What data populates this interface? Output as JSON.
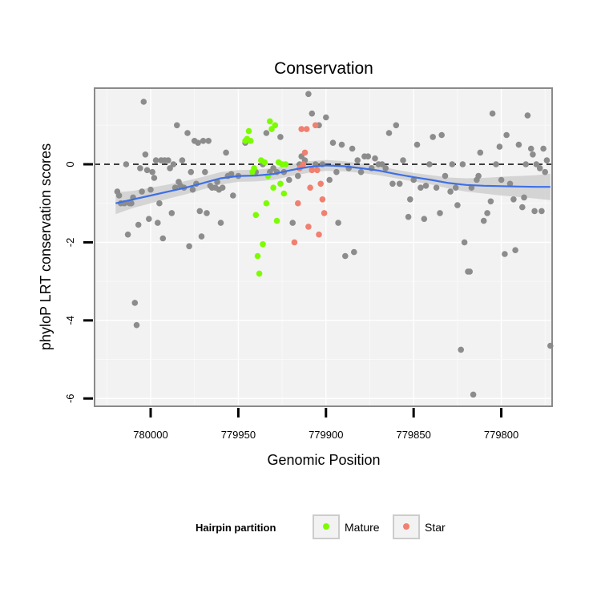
{
  "chart_data": {
    "type": "scatter",
    "title": "Conservation",
    "xlabel": "Genomic Position",
    "ylabel": "phyloP LRT conservation scores",
    "x_reversed": true,
    "xlim": [
      780032,
      779771
    ],
    "ylim": [
      -6.2,
      1.95
    ],
    "x_ticks": [
      780000,
      779950,
      779900,
      779850,
      779800
    ],
    "y_ticks": [
      0,
      -2,
      -4,
      -6
    ],
    "reference_line": {
      "y": 0,
      "style": "dashed"
    },
    "legend": {
      "title": "Hairpin partition",
      "position": "bottom",
      "entries": [
        {
          "label": "Mature",
          "color": "#7cfc00"
        },
        {
          "label": "Star",
          "color": "#f08070"
        }
      ]
    },
    "colors": {
      "background": "#f2f2f2",
      "other": "#8c8c8c",
      "mature": "#7cfc00",
      "star": "#f08070",
      "smooth": "#3d6fe6",
      "ribbon": "#c9c9c9"
    },
    "smooth_line": {
      "x": [
        780020,
        780010,
        780000,
        779990,
        779980,
        779970,
        779960,
        779950,
        779940,
        779930,
        779920,
        779910,
        779900,
        779890,
        779880,
        779870,
        779860,
        779850,
        779840,
        779830,
        779820,
        779810,
        779800,
        779790,
        779780,
        779772
      ],
      "y": [
        -1.0,
        -0.9,
        -0.8,
        -0.7,
        -0.6,
        -0.48,
        -0.36,
        -0.3,
        -0.29,
        -0.25,
        -0.15,
        -0.07,
        -0.03,
        -0.05,
        -0.1,
        -0.16,
        -0.25,
        -0.33,
        -0.4,
        -0.48,
        -0.53,
        -0.55,
        -0.56,
        -0.57,
        -0.58,
        -0.58
      ],
      "lower": [
        -1.28,
        -1.12,
        -1.0,
        -0.88,
        -0.77,
        -0.64,
        -0.52,
        -0.45,
        -0.44,
        -0.4,
        -0.3,
        -0.22,
        -0.17,
        -0.18,
        -0.22,
        -0.28,
        -0.36,
        -0.44,
        -0.52,
        -0.62,
        -0.7,
        -0.75,
        -0.8,
        -0.84,
        -0.88,
        -0.92
      ],
      "upper": [
        -0.72,
        -0.68,
        -0.6,
        -0.52,
        -0.43,
        -0.32,
        -0.2,
        -0.15,
        -0.14,
        -0.1,
        0.0,
        0.08,
        0.11,
        0.08,
        0.02,
        -0.04,
        -0.14,
        -0.22,
        -0.28,
        -0.34,
        -0.36,
        -0.35,
        -0.32,
        -0.3,
        -0.28,
        -0.24
      ]
    },
    "series": [
      {
        "name": "Other",
        "points": [
          [
            780019,
            -0.7
          ],
          [
            780018,
            -0.8
          ],
          [
            780017,
            -1.0
          ],
          [
            780015,
            -1.0
          ],
          [
            780014,
            0.0
          ],
          [
            780013,
            -1.8
          ],
          [
            780012,
            -1.0
          ],
          [
            780011,
            -1.0
          ],
          [
            780010,
            -0.85
          ],
          [
            780009,
            -3.55
          ],
          [
            780008,
            -4.12
          ],
          [
            780007,
            -1.55
          ],
          [
            780006,
            -0.1
          ],
          [
            780005,
            -0.7
          ],
          [
            780004,
            1.6
          ],
          [
            780003,
            0.25
          ],
          [
            780002,
            -0.15
          ],
          [
            780001,
            -1.4
          ],
          [
            780000,
            -0.65
          ],
          [
            779999,
            -0.2
          ],
          [
            779998,
            -0.35
          ],
          [
            779997,
            0.1
          ],
          [
            779996,
            -1.5
          ],
          [
            779995,
            -1.0
          ],
          [
            779994,
            0.1
          ],
          [
            779993,
            -1.9
          ],
          [
            779992,
            0.1
          ],
          [
            779990,
            0.1
          ],
          [
            779989,
            -0.1
          ],
          [
            779988,
            -1.25
          ],
          [
            779987,
            0.0
          ],
          [
            779986,
            -0.6
          ],
          [
            779985,
            1.0
          ],
          [
            779984,
            -0.45
          ],
          [
            779983,
            -0.55
          ],
          [
            779982,
            0.1
          ],
          [
            779981,
            -0.6
          ],
          [
            779979,
            0.8
          ],
          [
            779978,
            -2.1
          ],
          [
            779977,
            -0.2
          ],
          [
            779976,
            -0.65
          ],
          [
            779975,
            0.6
          ],
          [
            779974,
            -0.5
          ],
          [
            779973,
            0.55
          ],
          [
            779972,
            -1.2
          ],
          [
            779971,
            -1.85
          ],
          [
            779970,
            0.6
          ],
          [
            779969,
            -0.2
          ],
          [
            779968,
            -1.25
          ],
          [
            779967,
            0.6
          ],
          [
            779966,
            -0.55
          ],
          [
            779965,
            -0.6
          ],
          [
            779963,
            -0.6
          ],
          [
            779962,
            -0.45
          ],
          [
            779961,
            -0.65
          ],
          [
            779960,
            -1.5
          ],
          [
            779959,
            -0.6
          ],
          [
            779957,
            0.3
          ],
          [
            779956,
            -0.3
          ],
          [
            779954,
            -0.25
          ],
          [
            779953,
            -0.8
          ],
          [
            779950,
            -0.3
          ],
          [
            779946,
            0.55
          ],
          [
            779940,
            -0.2
          ],
          [
            779936,
            0.0
          ],
          [
            779934,
            0.8
          ],
          [
            779932,
            -0.2
          ],
          [
            779930,
            -0.1
          ],
          [
            779928,
            -0.2
          ],
          [
            779926,
            0.7
          ],
          [
            779924,
            -0.2
          ],
          [
            779921,
            -0.4
          ],
          [
            779919,
            -1.5
          ],
          [
            779916,
            -0.3
          ],
          [
            779915,
            0.0
          ],
          [
            779914,
            0.2
          ],
          [
            779912,
            0.1
          ],
          [
            779910,
            1.8
          ],
          [
            779908,
            1.3
          ],
          [
            779906,
            0.0
          ],
          [
            779904,
            1.0
          ],
          [
            779902,
            0.0
          ],
          [
            779900,
            1.2
          ],
          [
            779898,
            -0.4
          ],
          [
            779896,
            0.55
          ],
          [
            779894,
            -0.2
          ],
          [
            779893,
            -1.5
          ],
          [
            779891,
            0.5
          ],
          [
            779889,
            -2.35
          ],
          [
            779887,
            -0.1
          ],
          [
            779885,
            0.4
          ],
          [
            779884,
            -2.25
          ],
          [
            779882,
            0.1
          ],
          [
            779880,
            -0.2
          ],
          [
            779878,
            0.2
          ],
          [
            779876,
            0.2
          ],
          [
            779874,
            -0.1
          ],
          [
            779872,
            0.15
          ],
          [
            779870,
            0.0
          ],
          [
            779868,
            0.0
          ],
          [
            779866,
            -0.1
          ],
          [
            779864,
            0.8
          ],
          [
            779862,
            -0.5
          ],
          [
            779860,
            1.0
          ],
          [
            779858,
            -0.5
          ],
          [
            779856,
            0.1
          ],
          [
            779853,
            -1.35
          ],
          [
            779852,
            -0.9
          ],
          [
            779850,
            -0.4
          ],
          [
            779848,
            0.5
          ],
          [
            779846,
            -0.6
          ],
          [
            779844,
            -1.4
          ],
          [
            779843,
            -0.55
          ],
          [
            779841,
            0.0
          ],
          [
            779839,
            0.7
          ],
          [
            779837,
            -0.6
          ],
          [
            779835,
            -1.25
          ],
          [
            779834,
            0.75
          ],
          [
            779832,
            -0.3
          ],
          [
            779829,
            -0.7
          ],
          [
            779828,
            0.0
          ],
          [
            779826,
            -0.6
          ],
          [
            779825,
            -1.05
          ],
          [
            779823,
            -4.75
          ],
          [
            779822,
            0.0
          ],
          [
            779821,
            -2.0
          ],
          [
            779819,
            -2.75
          ],
          [
            779818,
            -2.75
          ],
          [
            779817,
            -0.6
          ],
          [
            779816,
            -5.9
          ],
          [
            779814,
            -0.4
          ],
          [
            779813,
            -0.3
          ],
          [
            779812,
            0.3
          ],
          [
            779810,
            -1.45
          ],
          [
            779808,
            -1.25
          ],
          [
            779806,
            -0.95
          ],
          [
            779805,
            1.3
          ],
          [
            779803,
            0.0
          ],
          [
            779801,
            0.45
          ],
          [
            779800,
            -0.4
          ],
          [
            779798,
            -2.3
          ],
          [
            779797,
            0.75
          ],
          [
            779795,
            -0.5
          ],
          [
            779793,
            -0.9
          ],
          [
            779792,
            -2.2
          ],
          [
            779790,
            0.5
          ],
          [
            779788,
            -1.1
          ],
          [
            779787,
            -0.85
          ],
          [
            779786,
            0.0
          ],
          [
            779785,
            1.25
          ],
          [
            779783,
            0.4
          ],
          [
            779782,
            0.25
          ],
          [
            779781,
            -1.2
          ],
          [
            779780,
            0.0
          ],
          [
            779778,
            -0.1
          ],
          [
            779777,
            -1.2
          ],
          [
            779776,
            0.4
          ],
          [
            779775,
            -0.2
          ],
          [
            779774,
            0.1
          ],
          [
            779772,
            -4.65
          ]
        ]
      },
      {
        "name": "Mature",
        "points": [
          [
            779946,
            0.6
          ],
          [
            779945,
            0.65
          ],
          [
            779944,
            0.85
          ],
          [
            779943,
            0.6
          ],
          [
            779942,
            -0.2
          ],
          [
            779941,
            -0.1
          ],
          [
            779940,
            -1.3
          ],
          [
            779939,
            -2.35
          ],
          [
            779938,
            -2.8
          ],
          [
            779937,
            0.1
          ],
          [
            779936,
            -2.05
          ],
          [
            779935,
            0.05
          ],
          [
            779934,
            -1.0
          ],
          [
            779933,
            -0.3
          ],
          [
            779932,
            1.1
          ],
          [
            779931,
            0.9
          ],
          [
            779930,
            -0.6
          ],
          [
            779929,
            1.0
          ],
          [
            779928,
            -1.45
          ],
          [
            779927,
            0.05
          ],
          [
            779926,
            -0.5
          ],
          [
            779925,
            0.0
          ],
          [
            779924,
            -0.75
          ],
          [
            779923,
            0.0
          ]
        ]
      },
      {
        "name": "Star",
        "points": [
          [
            779918,
            -2.0
          ],
          [
            779916,
            -1.0
          ],
          [
            779915,
            -0.1
          ],
          [
            779914,
            0.9
          ],
          [
            779913,
            0.0
          ],
          [
            779912,
            0.3
          ],
          [
            779911,
            0.9
          ],
          [
            779910,
            -1.6
          ],
          [
            779909,
            -0.6
          ],
          [
            779908,
            -0.15
          ],
          [
            779906,
            1.0
          ],
          [
            779905,
            -0.15
          ],
          [
            779904,
            -1.8
          ],
          [
            779903,
            -0.5
          ],
          [
            779902,
            -0.9
          ],
          [
            779901,
            -1.25
          ]
        ]
      }
    ]
  }
}
